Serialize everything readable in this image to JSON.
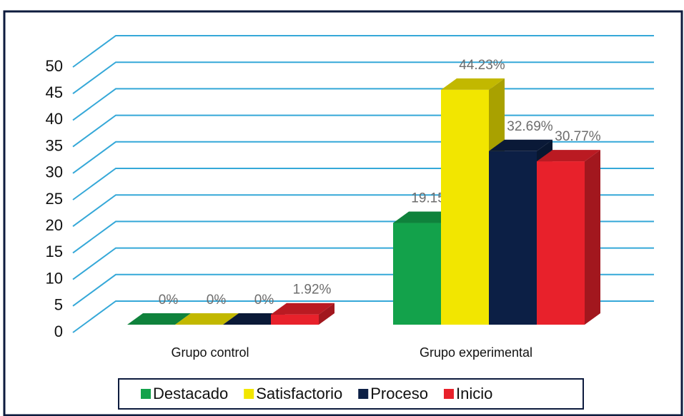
{
  "chart_data": {
    "type": "bar3d",
    "categories": [
      "Grupo control",
      "Grupo experimental"
    ],
    "series": [
      {
        "name": "Destacado",
        "color": "#13a24b",
        "values": [
          0,
          19.15
        ],
        "value_labels": [
          "0%",
          "19.15%"
        ]
      },
      {
        "name": "Satisfactorio",
        "color": "#f2e600",
        "values": [
          0,
          44.23
        ],
        "value_labels": [
          "0%",
          "44.23%"
        ]
      },
      {
        "name": "Proceso",
        "color": "#0c1f45",
        "values": [
          0,
          32.69
        ],
        "value_labels": [
          "0%",
          "32.69%"
        ]
      },
      {
        "name": "Inicio",
        "color": "#e8212b",
        "values": [
          1.92,
          30.77
        ],
        "value_labels": [
          "1.92%",
          "30.77%"
        ]
      }
    ],
    "ylim": [
      0,
      50
    ],
    "yticks": [
      0,
      5,
      10,
      15,
      20,
      25,
      30,
      35,
      40,
      45,
      50
    ],
    "grid": true,
    "legend": "bottom"
  }
}
